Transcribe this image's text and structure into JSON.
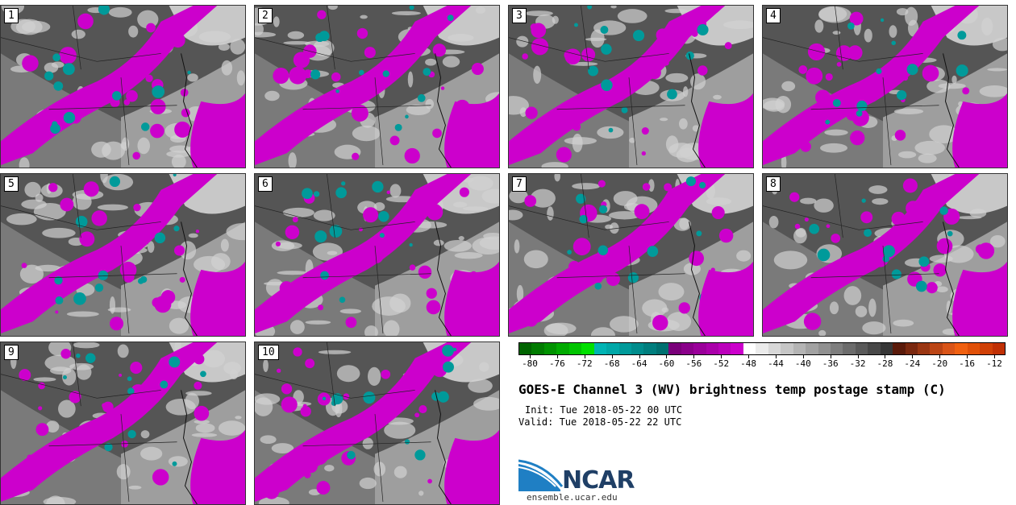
{
  "panels": [
    {
      "label": "1"
    },
    {
      "label": "2"
    },
    {
      "label": "3"
    },
    {
      "label": "4"
    },
    {
      "label": "5"
    },
    {
      "label": "6"
    },
    {
      "label": "7"
    },
    {
      "label": "8"
    },
    {
      "label": "9"
    },
    {
      "label": "10"
    }
  ],
  "colorbar": {
    "colors": [
      "#006400",
      "#007b00",
      "#009200",
      "#00aa00",
      "#00c400",
      "#00e000",
      "#00b4b4",
      "#00a8a8",
      "#009a9a",
      "#008c8c",
      "#007e7e",
      "#007070",
      "#7a007a",
      "#8a008a",
      "#9a009a",
      "#aa00aa",
      "#bb00bb",
      "#cc00cc",
      "#ffffff",
      "#ebebeb",
      "#d8d8d8",
      "#c6c6c6",
      "#b4b4b4",
      "#a2a2a2",
      "#909090",
      "#7e7e7e",
      "#6c6c6c",
      "#5a5a5a",
      "#484848",
      "#363636",
      "#5a1a0a",
      "#7a280f",
      "#9a3612",
      "#bb4515",
      "#d95418",
      "#f06010",
      "#e05008",
      "#d04006",
      "#c03004"
    ],
    "ticks": [
      "-80",
      "-76",
      "-72",
      "-68",
      "-64",
      "-60",
      "-56",
      "-52",
      "-48",
      "-44",
      "-40",
      "-36",
      "-32",
      "-28",
      "-24",
      "-20",
      "-16",
      "-12"
    ]
  },
  "title": "GOES-E Channel 3 (WV) brightness temp postage stamp (C)",
  "init": "Init: Tue 2018-05-22 00 UTC",
  "valid": "Valid: Tue 2018-05-22 22 UTC",
  "logo": {
    "text": "NCAR",
    "url": "ensemble.ucar.edu"
  }
}
